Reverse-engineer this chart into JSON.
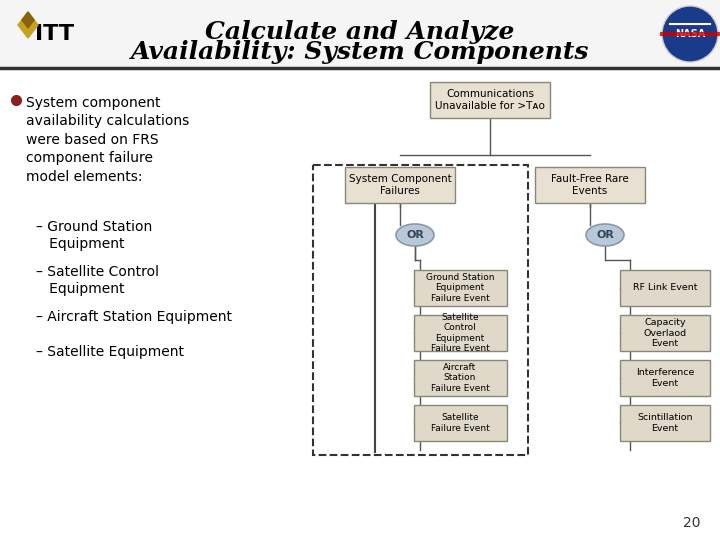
{
  "title_line1": "Calculate and Analyze",
  "title_line2": "Availability: System Components",
  "bg_color": "#ffffff",
  "header_bg": "#ffffff",
  "header_border": "#000000",
  "box_fill_light": "#e8e0d0",
  "box_fill_medium": "#ddd0b8",
  "box_fill_or": "#c8d8e8",
  "dashed_rect_color": "#333333",
  "bullet_color": "#8b2020",
  "bullet_text": "System component availability calculations were based on FRS component failure model elements:",
  "sub_items": [
    "Ground Station\nEquipment",
    "Satellite Control\nEquipment",
    "Aircraft Station Equipment",
    "Satellite Equipment"
  ],
  "top_box_text": "Communications\nUnavailable for >Tᴀᴏ",
  "left_box_text": "System Component\nFailures",
  "right_box_text": "Fault-Free Rare\nEvents",
  "left_children": [
    "Ground Station\nEquipment\nFailure Event",
    "Satellite\nControl\nEquipment\nFailure Event",
    "Aircraft\nStation\nFailure Event",
    "Satellite\nFailure Event"
  ],
  "right_children": [
    "RF Link Event",
    "Capacity\nOverlaod\nEvent",
    "Interference\nEvent",
    "Scintillation\nEvent"
  ],
  "page_number": "20"
}
